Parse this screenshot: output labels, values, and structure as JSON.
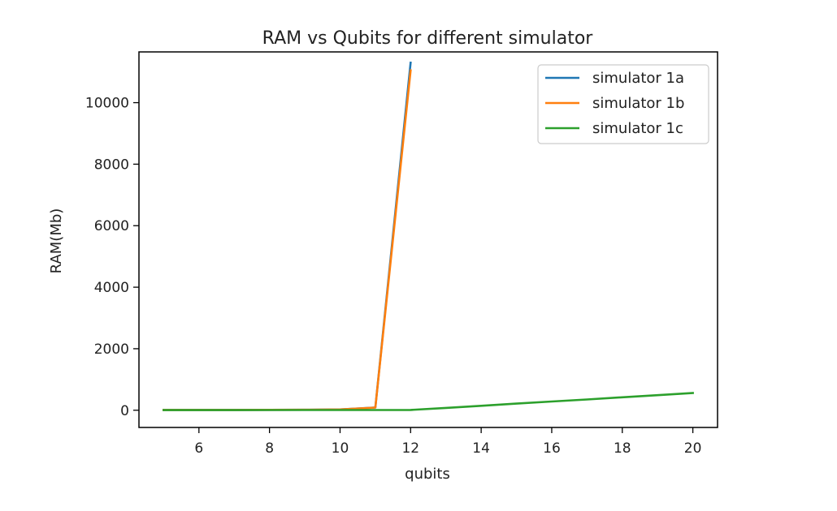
{
  "chart_data": {
    "type": "line",
    "title": "RAM vs Qubits for different simulator",
    "xlabel": "qubits",
    "ylabel": "RAM(Mb)",
    "xlim": [
      4.3,
      20.7
    ],
    "ylim": [
      -560,
      11650
    ],
    "xticks": [
      6,
      8,
      10,
      12,
      14,
      16,
      18,
      20
    ],
    "yticks": [
      0,
      2000,
      4000,
      6000,
      8000,
      10000
    ],
    "grid": false,
    "legend_position": "top-right",
    "series": [
      {
        "name": "simulator 1a",
        "color": "#1f77b4",
        "x": [
          5,
          6,
          7,
          8,
          9,
          10,
          11,
          12
        ],
        "y": [
          10,
          10,
          10,
          12,
          15,
          25,
          90,
          11300
        ]
      },
      {
        "name": "simulator 1b",
        "color": "#ff7f0e",
        "x": [
          5,
          6,
          7,
          8,
          9,
          10,
          11,
          12
        ],
        "y": [
          10,
          10,
          10,
          12,
          15,
          25,
          85,
          11050
        ]
      },
      {
        "name": "simulator 1c",
        "color": "#2ca02c",
        "x": [
          5,
          6,
          7,
          8,
          9,
          10,
          11,
          12,
          13,
          14,
          15,
          16,
          17,
          18,
          19,
          20
        ],
        "y": [
          5,
          5,
          5,
          6,
          6,
          7,
          8,
          10,
          75,
          145,
          215,
          285,
          350,
          420,
          490,
          560
        ]
      }
    ]
  }
}
